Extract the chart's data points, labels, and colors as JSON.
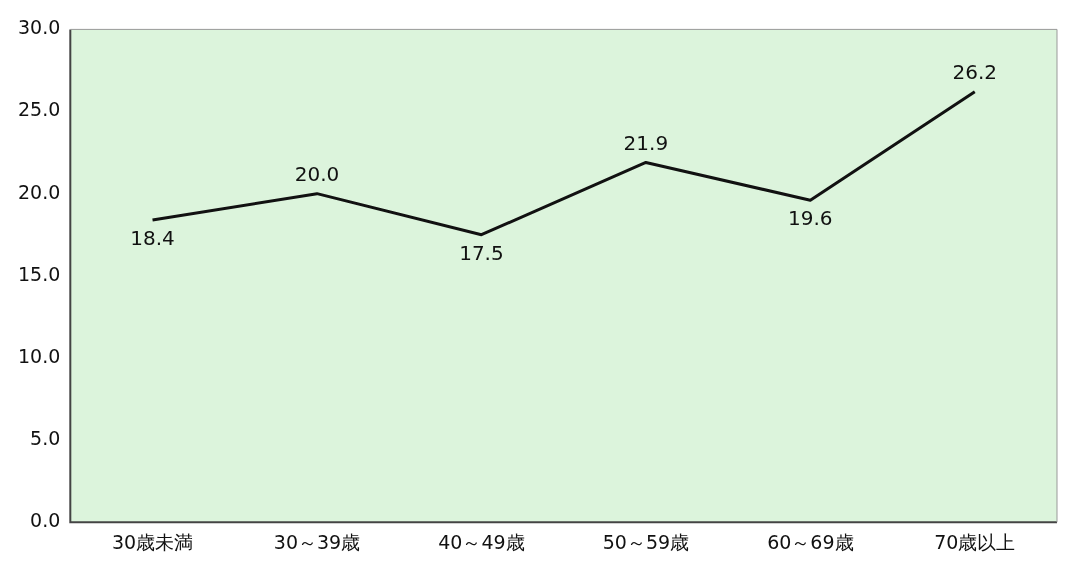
{
  "chart_data": {
    "type": "line",
    "categories": [
      "30歳未満",
      "30～39歳",
      "40～49歳",
      "50～59歳",
      "60～69歳",
      "70歳以上"
    ],
    "series": [
      {
        "color": "#111111",
        "values": [
          18.4,
          20.0,
          17.5,
          21.9,
          19.6,
          26.2
        ],
        "value_labels": [
          "18.4",
          "20.0",
          "17.5",
          "21.9",
          "19.6",
          "26.2"
        ]
      }
    ],
    "ylim": [
      0,
      30
    ],
    "yticks": [
      {
        "value": 0,
        "label": "0.0"
      },
      {
        "value": 5,
        "label": "5.0"
      },
      {
        "value": 10,
        "label": "10.0"
      },
      {
        "value": 15,
        "label": "15.0"
      },
      {
        "value": 20,
        "label": "20.0"
      },
      {
        "value": 25,
        "label": "25.0"
      },
      {
        "value": 30,
        "label": "30.0"
      }
    ],
    "grid": false,
    "legend": false,
    "marker": "none",
    "line_style": "solid"
  }
}
